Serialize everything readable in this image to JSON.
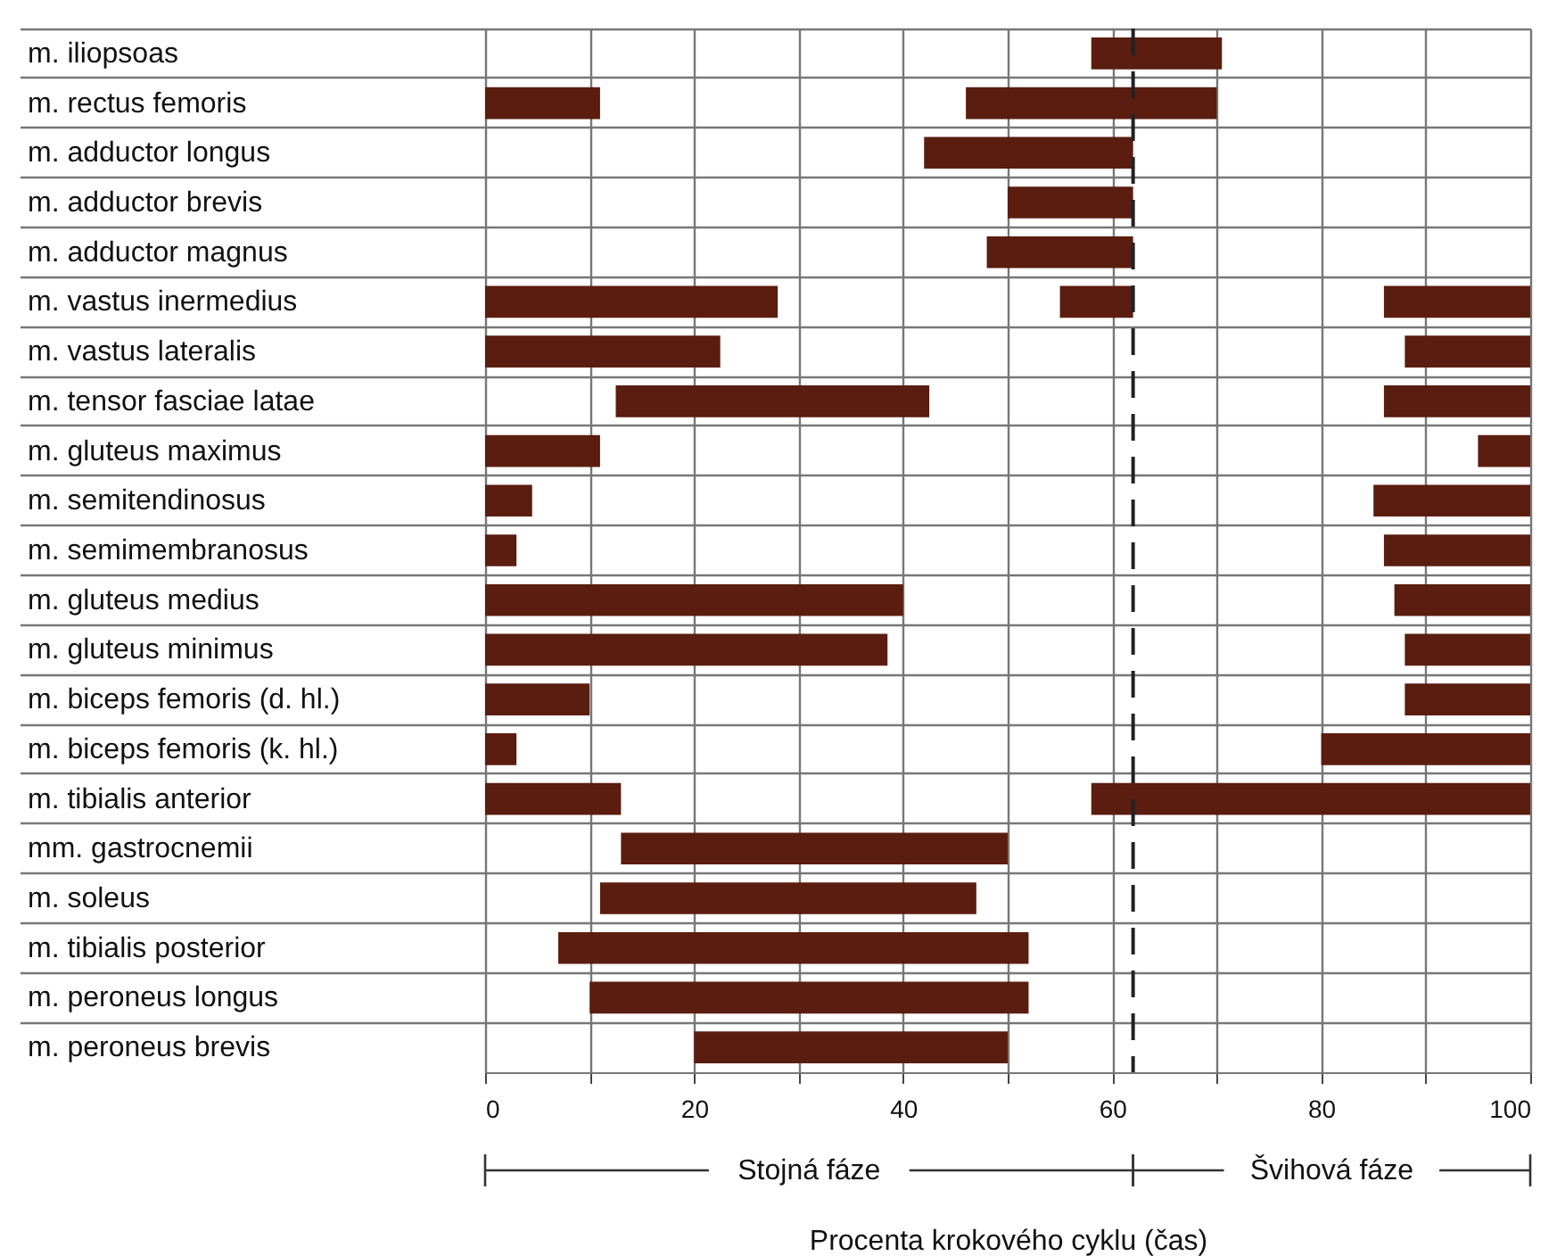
{
  "chart_data": {
    "type": "bar",
    "orientation": "horizontal",
    "xlabel": "Procenta krokového cyklu (čas)",
    "categories": [
      "m. iliopsoas",
      "m. rectus femoris",
      "m. adductor longus",
      "m. adductor brevis",
      "m. adductor magnus",
      "m. vastus inermedius",
      "m. vastus lateralis",
      "m. tensor fasciae latae",
      "m. gluteus maximus",
      "m. semitendinosus",
      "m. semimembranosus",
      "m. gluteus medius",
      "m. gluteus minimus",
      "m. biceps femoris (d. hl.)",
      "m. biceps femoris (k. hl.)",
      "m. tibialis anterior",
      "mm. gastrocnemii",
      "m. soleus",
      "m. tibialis posterior",
      "m. peroneus longus",
      "m. peroneus brevis"
    ],
    "series": [
      {
        "color": "#5a1d0f",
        "base": [
          58,
          0,
          42,
          50,
          48,
          0,
          0,
          12.5,
          0,
          0,
          0,
          0,
          0,
          0,
          0,
          0,
          13,
          11,
          7,
          10,
          20
        ],
        "values": [
          12.5,
          11,
          20,
          12,
          14,
          28,
          22.5,
          30,
          11,
          4.5,
          3,
          40,
          38.5,
          10,
          3,
          13,
          37,
          36,
          45,
          42,
          30
        ]
      },
      {
        "color": "#5a1d0f",
        "base": [
          null,
          46,
          null,
          null,
          null,
          55,
          88,
          86,
          95,
          85,
          86,
          87,
          88,
          88,
          80,
          58,
          null,
          null,
          null,
          null,
          null
        ],
        "values": [
          null,
          24,
          null,
          null,
          null,
          7,
          12,
          14,
          5,
          15,
          14,
          13,
          12,
          12,
          20,
          42,
          null,
          null,
          null,
          null,
          null
        ]
      },
      {
        "color": "#5a1d0f",
        "base": [
          null,
          null,
          null,
          null,
          null,
          86,
          null,
          null,
          null,
          null,
          null,
          null,
          null,
          null,
          null,
          null,
          null,
          null,
          null,
          null,
          null
        ],
        "values": [
          null,
          null,
          null,
          null,
          null,
          14,
          null,
          null,
          null,
          null,
          null,
          null,
          null,
          null,
          null,
          null,
          null,
          null,
          null,
          null,
          null
        ]
      }
    ],
    "xlim": [
      0,
      100
    ],
    "xticks": [
      0,
      {
        "value": 10,
        "label": null
      },
      20,
      {
        "value": 30,
        "label": null
      },
      40,
      {
        "value": 50,
        "label": null
      },
      60,
      {
        "value": 70,
        "label": null
      },
      80,
      {
        "value": 90,
        "label": null
      },
      100
    ],
    "grid": true,
    "legend": false,
    "ref_lines": [
      {
        "axis": "x",
        "value": 62,
        "line_style": "dashed",
        "color": "#222222"
      }
    ],
    "annotations": [
      "Stojná fáze",
      "Švihová fáze"
    ]
  }
}
